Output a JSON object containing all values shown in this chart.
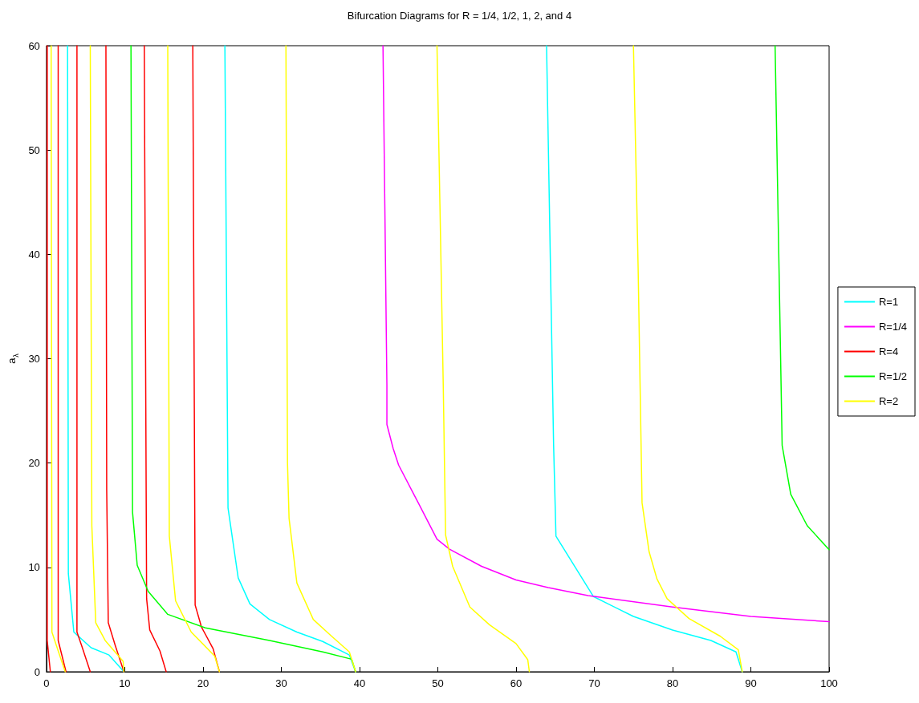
{
  "chart_data": {
    "type": "line",
    "title": "Bifurcation Diagrams for R = 1/4, 1/2, 1, 2, and 4",
    "ylabel": "a$_{λ}$",
    "xlim": [
      0,
      100
    ],
    "xticks": [
      0,
      10,
      20,
      30,
      40,
      50,
      60,
      70,
      80,
      90,
      100
    ],
    "ylim": [
      0,
      60
    ],
    "yticks": [
      0,
      10,
      20,
      30,
      40,
      50,
      60
    ],
    "grid": false,
    "legend": "right",
    "marker": "none",
    "line_style": "solid",
    "series": [
      {
        "name": "R=1",
        "color": "#00ffff",
        "x": [
          2.7,
          2.8,
          3.5,
          5.7,
          8,
          9.9,
          null,
          22.8,
          23.2,
          24.5,
          26,
          28.5,
          32,
          35.3,
          38.7,
          39.5,
          null,
          63.9,
          64.4,
          64.8,
          65.1,
          69.9,
          75,
          80,
          84.9,
          88.1,
          88.9
        ],
        "values": [
          60,
          9.4,
          3.8,
          2.3,
          1.6,
          0,
          null,
          60,
          15.7,
          9,
          6.5,
          5,
          3.8,
          2.9,
          1.6,
          0,
          null,
          60,
          38.7,
          21.7,
          13,
          7.2,
          5.3,
          4,
          3,
          1.9,
          0
        ]
      },
      {
        "name": "R=1/4",
        "color": "#ff00ff",
        "x": [
          43,
          43.5,
          43.5,
          44.3,
          45,
          47.5,
          49.9,
          51.5,
          55.6,
          60,
          64.1,
          69.2,
          80,
          90,
          100
        ],
        "values": [
          60,
          27.5,
          23.7,
          21.4,
          19.8,
          16.2,
          12.7,
          11.75,
          10.1,
          8.8,
          8.06,
          7.3,
          6.2,
          5.3,
          4.8
        ]
      },
      {
        "name": "R=4",
        "color": "#ff0000",
        "x": [
          0.1,
          0.1,
          0.5,
          null,
          1.5,
          1.5,
          2.5,
          null,
          3.9,
          3.9,
          4.5,
          5.6,
          null,
          7.6,
          7.7,
          7.9,
          8.8,
          9.9,
          null,
          12.5,
          12.8,
          13.2,
          14.5,
          15.3,
          null,
          18.7,
          19,
          19.8,
          21.3,
          22.1
        ],
        "values": [
          60,
          3,
          0,
          null,
          60,
          3,
          0,
          null,
          60,
          3.8,
          2.5,
          0,
          null,
          60,
          17.4,
          4.7,
          2.5,
          0,
          null,
          60,
          7,
          4,
          2,
          0,
          null,
          60,
          6.4,
          4.3,
          2.2,
          0
        ]
      },
      {
        "name": "R=1/2",
        "color": "#00ff00",
        "x": [
          10.8,
          11,
          11.6,
          13,
          15.5,
          20.3,
          28.5,
          35.3,
          39,
          39.5,
          null,
          93.1,
          93.6,
          94,
          95.1,
          97.2,
          100
        ],
        "values": [
          60,
          15.3,
          10.2,
          7.7,
          5.5,
          4.2,
          3,
          1.9,
          1.2,
          0,
          null,
          60,
          38.7,
          21.7,
          17,
          14,
          11.7
        ]
      },
      {
        "name": "R=2",
        "color": "#ffff00",
        "x": [
          0.6,
          0.7,
          1.5,
          2.4,
          null,
          5.6,
          5.8,
          6.3,
          7.5,
          9.8,
          9.9,
          null,
          15.5,
          15.7,
          16.5,
          18.5,
          21.5,
          22.1,
          null,
          30.6,
          30.8,
          31,
          32,
          34.1,
          36.3,
          38.7,
          39.5,
          null,
          49.9,
          50.7,
          50.9,
          51,
          51.9,
          54.1,
          56.6,
          60,
          61.5,
          61.7,
          null,
          75,
          75.6,
          76.1,
          77,
          78,
          79.3,
          82.1,
          86.1,
          88.4,
          88.9
        ],
        "values": [
          60,
          3.8,
          2,
          0,
          null,
          60,
          14,
          4.7,
          3,
          1,
          0,
          null,
          60,
          13,
          6.8,
          3.8,
          1.5,
          0,
          null,
          60,
          20,
          14.7,
          8.5,
          5,
          3.5,
          1.9,
          0,
          null,
          60,
          27.5,
          17.8,
          13.1,
          10.1,
          6.2,
          4.5,
          2.7,
          1.15,
          0,
          null,
          60,
          38.7,
          16.2,
          11.5,
          8.9,
          7,
          5.1,
          3.4,
          2.1,
          0
        ]
      }
    ]
  }
}
